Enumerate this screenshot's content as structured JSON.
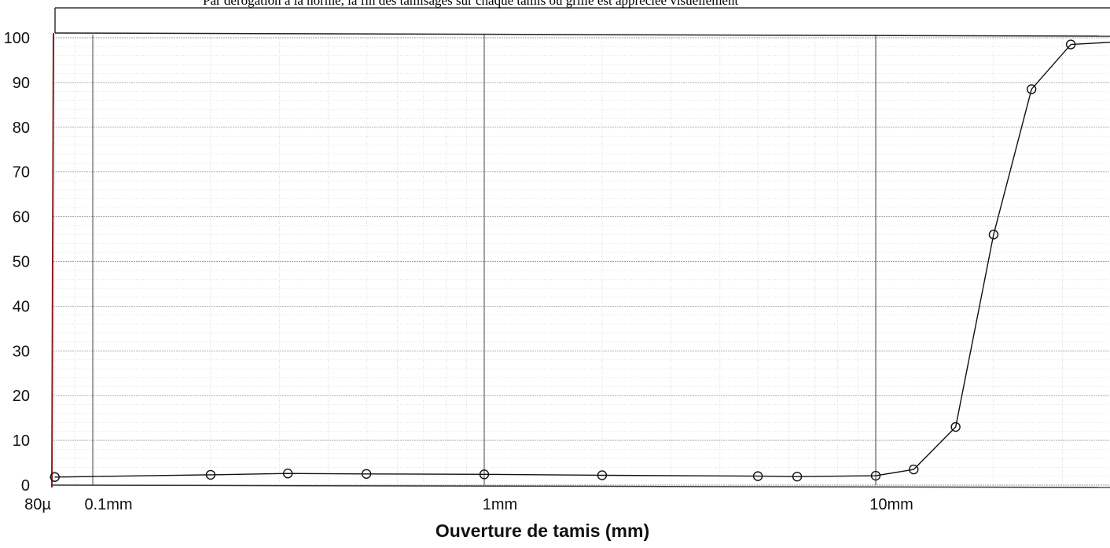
{
  "header_note": "Par dérogation à la norme, la fin des tamisages sur chaque tamis ou grille est appréciée visuellement",
  "chart_data": {
    "type": "line",
    "title": "",
    "xlabel": "Ouverture de tamis (mm)",
    "ylabel": "",
    "x_scale": "log",
    "xlim": [
      0.08,
      50
    ],
    "ylim": [
      0,
      100
    ],
    "y_ticks": [
      0,
      10,
      20,
      30,
      40,
      50,
      60,
      70,
      80,
      90,
      100
    ],
    "x_tick_labels": [
      {
        "value": 0.08,
        "label": "80µ"
      },
      {
        "value": 0.1,
        "label": "0.1mm"
      },
      {
        "value": 1,
        "label": "1mm"
      },
      {
        "value": 10,
        "label": "10mm"
      }
    ],
    "grid": true,
    "series": [
      {
        "x": [
          0.08,
          0.2,
          0.315,
          0.5,
          1,
          2,
          5,
          6.3,
          10,
          12.5,
          16,
          20,
          25,
          31.5,
          40
        ],
        "y": [
          1.8,
          2.3,
          2.6,
          2.5,
          2.4,
          2.2,
          2.0,
          1.9,
          2.1,
          3.5,
          13,
          56,
          88.5,
          98.5,
          99
        ]
      }
    ],
    "marker": "open-circle",
    "colors": {
      "line": "#111111",
      "grid_major": "#555555",
      "grid_minor": "#c5cdd6",
      "axis_left": "#8b1a1a",
      "label_80": "#8b1a1a"
    }
  }
}
